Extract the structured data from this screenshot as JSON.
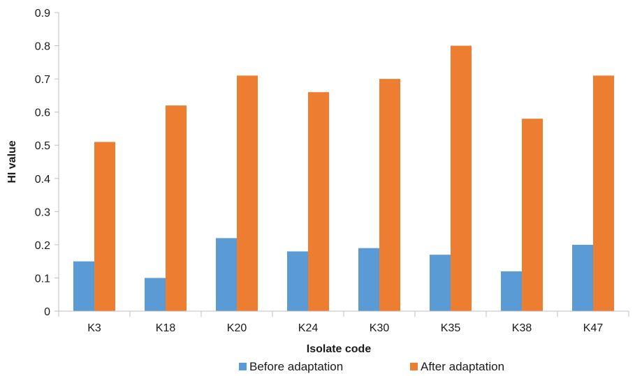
{
  "chart_data": {
    "type": "bar",
    "categories": [
      "K3",
      "K18",
      "K20",
      "K24",
      "K30",
      "K35",
      "K38",
      "K47"
    ],
    "series": [
      {
        "name": "Before adaptation",
        "color": "#5b9bd5",
        "values": [
          0.15,
          0.1,
          0.22,
          0.18,
          0.19,
          0.17,
          0.12,
          0.2
        ]
      },
      {
        "name": "After adaptation",
        "color": "#ed7d31",
        "values": [
          0.51,
          0.62,
          0.71,
          0.66,
          0.7,
          0.8,
          0.58,
          0.71
        ]
      }
    ],
    "xlabel": "Isolate code",
    "ylabel": "HI value",
    "ylim": [
      0,
      0.9
    ],
    "yticks": [
      "0",
      "0.1",
      "0.2",
      "0.3",
      "0.4",
      "0.5",
      "0.6",
      "0.7",
      "0.8",
      "0.9"
    ],
    "grid": false,
    "legend": "bottom"
  }
}
